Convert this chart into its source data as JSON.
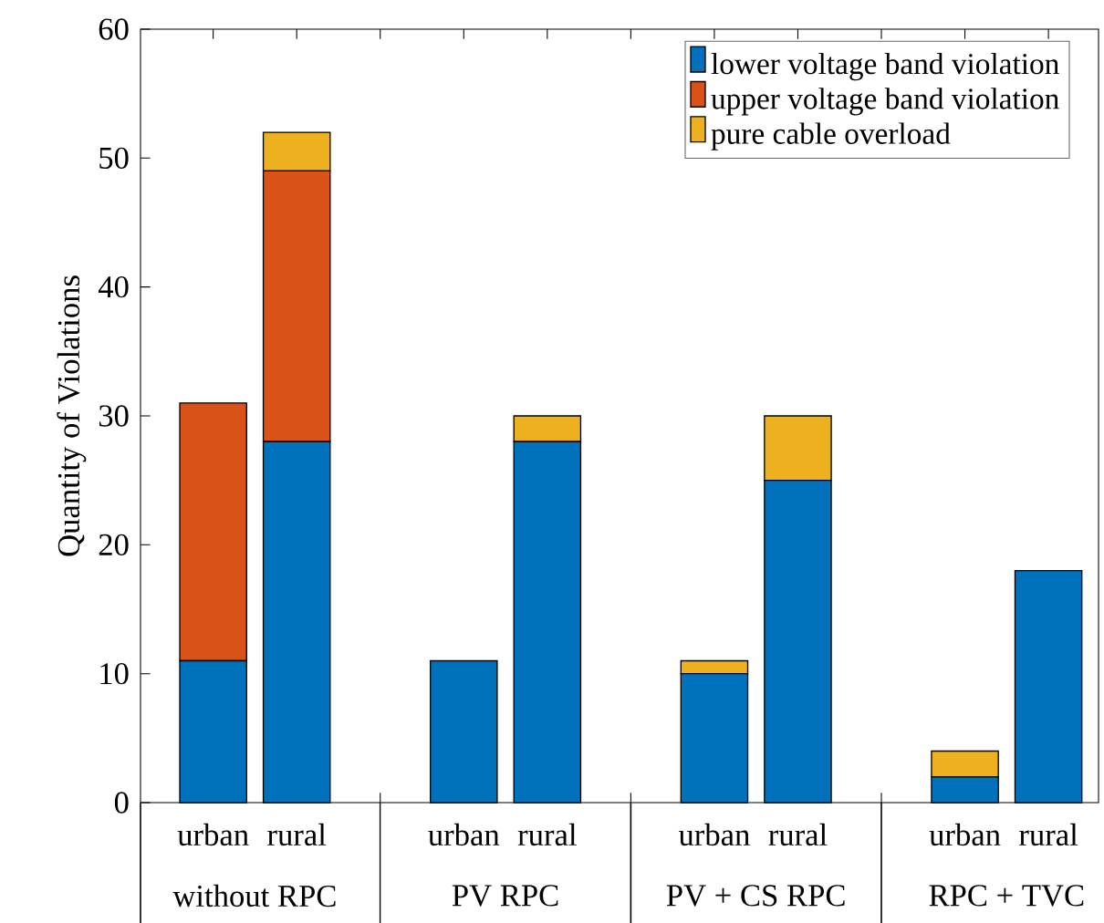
{
  "chart_data": {
    "type": "bar",
    "stacked": true,
    "ylabel": "Quantity of Violations",
    "categories": [
      "urban",
      "rural",
      null,
      "urban",
      "rural",
      null,
      "urban",
      "rural",
      null,
      "urban",
      "rural"
    ],
    "series": [
      {
        "name": "lower voltage band violation",
        "color": "#0072bd",
        "values": [
          11,
          28,
          0,
          11,
          28,
          0,
          10,
          25,
          0,
          2,
          18
        ]
      },
      {
        "name": "upper voltage band violation",
        "color": "#d95319",
        "values": [
          20,
          21,
          0,
          0,
          0,
          0,
          0,
          0,
          0,
          0,
          0
        ]
      },
      {
        "name": "pure cable overload",
        "color": "#edb120",
        "values": [
          0,
          3,
          0,
          0,
          2,
          0,
          1,
          5,
          0,
          2,
          0
        ]
      }
    ],
    "ylim": [
      0,
      60
    ],
    "yticks": [
      0,
      10,
      20,
      30,
      40,
      50,
      60
    ],
    "legend": "top right",
    "annotations": [
      "without RPC",
      "PV RPC",
      "PV + CS RPC",
      "RPC + TVC"
    ]
  }
}
